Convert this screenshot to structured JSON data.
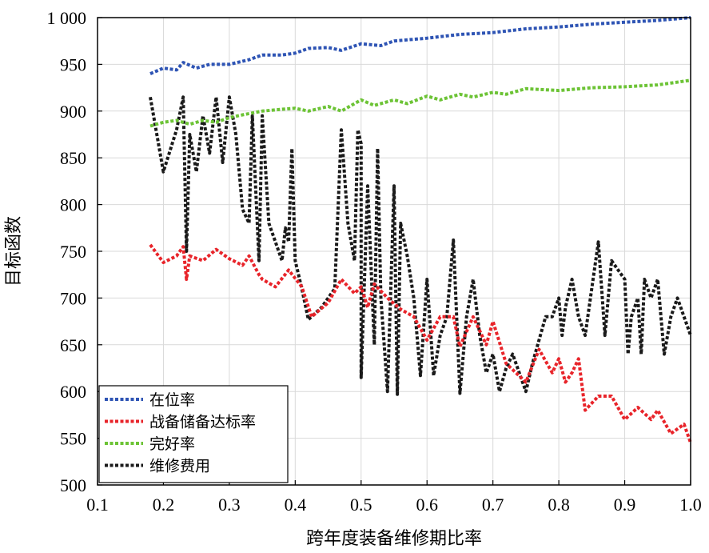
{
  "chart_data": {
    "type": "line",
    "xlabel": "跨年度装备维修期比率",
    "ylabel": "目标函数",
    "xlim": [
      0.1,
      1.0
    ],
    "ylim": [
      500,
      1000
    ],
    "x_ticks": [
      0.1,
      0.2,
      0.3,
      0.4,
      0.5,
      0.6,
      0.7,
      0.8,
      0.9,
      1.0
    ],
    "x_tick_labels": [
      "0.1",
      "0.2",
      "0.3",
      "0.4",
      "0.5",
      "0.6",
      "0.7",
      "0.8",
      "0.9",
      "1.0"
    ],
    "y_ticks": [
      500,
      550,
      600,
      650,
      700,
      750,
      800,
      850,
      900,
      950,
      1000
    ],
    "y_tick_labels": [
      "500",
      "550",
      "600",
      "650",
      "700",
      "750",
      "800",
      "850",
      "900",
      "950",
      "1 000"
    ],
    "grid": true,
    "legend_position": "bottom-left",
    "series": [
      {
        "name": "在位率",
        "color": "#2e54b4",
        "points": [
          [
            0.18,
            940
          ],
          [
            0.2,
            946
          ],
          [
            0.22,
            944
          ],
          [
            0.23,
            952
          ],
          [
            0.25,
            946
          ],
          [
            0.27,
            950
          ],
          [
            0.3,
            950
          ],
          [
            0.33,
            955
          ],
          [
            0.35,
            960
          ],
          [
            0.38,
            960
          ],
          [
            0.4,
            962
          ],
          [
            0.42,
            967
          ],
          [
            0.45,
            968
          ],
          [
            0.47,
            965
          ],
          [
            0.5,
            972
          ],
          [
            0.53,
            970
          ],
          [
            0.55,
            975
          ],
          [
            0.6,
            978
          ],
          [
            0.65,
            982
          ],
          [
            0.7,
            984
          ],
          [
            0.75,
            988
          ],
          [
            0.8,
            990
          ],
          [
            0.85,
            993
          ],
          [
            0.9,
            995
          ],
          [
            0.95,
            997
          ],
          [
            1.0,
            1000
          ]
        ]
      },
      {
        "name": "战备储备达标率",
        "color": "#e8242a",
        "points": [
          [
            0.18,
            757
          ],
          [
            0.2,
            738
          ],
          [
            0.22,
            745
          ],
          [
            0.23,
            755
          ],
          [
            0.235,
            720
          ],
          [
            0.24,
            745
          ],
          [
            0.26,
            740
          ],
          [
            0.28,
            752
          ],
          [
            0.3,
            742
          ],
          [
            0.32,
            735
          ],
          [
            0.33,
            745
          ],
          [
            0.345,
            725
          ],
          [
            0.35,
            720
          ],
          [
            0.37,
            712
          ],
          [
            0.39,
            730
          ],
          [
            0.41,
            712
          ],
          [
            0.425,
            680
          ],
          [
            0.45,
            695
          ],
          [
            0.47,
            720
          ],
          [
            0.49,
            705
          ],
          [
            0.5,
            712
          ],
          [
            0.51,
            690
          ],
          [
            0.52,
            715
          ],
          [
            0.54,
            700
          ],
          [
            0.56,
            688
          ],
          [
            0.58,
            680
          ],
          [
            0.6,
            655
          ],
          [
            0.62,
            680
          ],
          [
            0.64,
            680
          ],
          [
            0.65,
            648
          ],
          [
            0.67,
            680
          ],
          [
            0.69,
            650
          ],
          [
            0.7,
            675
          ],
          [
            0.72,
            630
          ],
          [
            0.75,
            610
          ],
          [
            0.77,
            645
          ],
          [
            0.79,
            620
          ],
          [
            0.8,
            635
          ],
          [
            0.81,
            610
          ],
          [
            0.82,
            620
          ],
          [
            0.83,
            635
          ],
          [
            0.84,
            580
          ],
          [
            0.86,
            595
          ],
          [
            0.88,
            595
          ],
          [
            0.9,
            570
          ],
          [
            0.92,
            583
          ],
          [
            0.94,
            570
          ],
          [
            0.95,
            580
          ],
          [
            0.97,
            555
          ],
          [
            0.99,
            565
          ],
          [
            1.0,
            545
          ]
        ]
      },
      {
        "name": "完好率",
        "color": "#6cc335",
        "points": [
          [
            0.18,
            884
          ],
          [
            0.2,
            888
          ],
          [
            0.22,
            890
          ],
          [
            0.24,
            886
          ],
          [
            0.26,
            890
          ],
          [
            0.28,
            888
          ],
          [
            0.3,
            893
          ],
          [
            0.32,
            896
          ],
          [
            0.35,
            900
          ],
          [
            0.38,
            902
          ],
          [
            0.4,
            903
          ],
          [
            0.42,
            900
          ],
          [
            0.45,
            905
          ],
          [
            0.47,
            900
          ],
          [
            0.5,
            912
          ],
          [
            0.52,
            906
          ],
          [
            0.55,
            912
          ],
          [
            0.57,
            908
          ],
          [
            0.6,
            916
          ],
          [
            0.62,
            912
          ],
          [
            0.65,
            918
          ],
          [
            0.67,
            915
          ],
          [
            0.7,
            920
          ],
          [
            0.72,
            918
          ],
          [
            0.75,
            924
          ],
          [
            0.8,
            922
          ],
          [
            0.85,
            925
          ],
          [
            0.9,
            926
          ],
          [
            0.95,
            928
          ],
          [
            1.0,
            933
          ]
        ]
      },
      {
        "name": "维修费用",
        "color": "#1a1a1a",
        "points": [
          [
            0.18,
            915
          ],
          [
            0.2,
            835
          ],
          [
            0.22,
            880
          ],
          [
            0.23,
            915
          ],
          [
            0.235,
            750
          ],
          [
            0.24,
            875
          ],
          [
            0.25,
            835
          ],
          [
            0.26,
            895
          ],
          [
            0.27,
            855
          ],
          [
            0.28,
            915
          ],
          [
            0.29,
            845
          ],
          [
            0.3,
            915
          ],
          [
            0.31,
            875
          ],
          [
            0.32,
            795
          ],
          [
            0.33,
            780
          ],
          [
            0.335,
            895
          ],
          [
            0.345,
            740
          ],
          [
            0.35,
            895
          ],
          [
            0.36,
            780
          ],
          [
            0.38,
            740
          ],
          [
            0.385,
            775
          ],
          [
            0.39,
            760
          ],
          [
            0.395,
            860
          ],
          [
            0.4,
            740
          ],
          [
            0.41,
            710
          ],
          [
            0.42,
            677
          ],
          [
            0.44,
            690
          ],
          [
            0.46,
            710
          ],
          [
            0.47,
            880
          ],
          [
            0.48,
            780
          ],
          [
            0.49,
            740
          ],
          [
            0.495,
            880
          ],
          [
            0.5,
            865
          ],
          [
            0.5,
            615
          ],
          [
            0.51,
            820
          ],
          [
            0.52,
            650
          ],
          [
            0.525,
            860
          ],
          [
            0.53,
            700
          ],
          [
            0.54,
            600
          ],
          [
            0.55,
            820
          ],
          [
            0.555,
            597
          ],
          [
            0.56,
            780
          ],
          [
            0.57,
            745
          ],
          [
            0.58,
            700
          ],
          [
            0.59,
            617
          ],
          [
            0.6,
            720
          ],
          [
            0.61,
            617
          ],
          [
            0.62,
            660
          ],
          [
            0.63,
            680
          ],
          [
            0.64,
            762
          ],
          [
            0.65,
            598
          ],
          [
            0.66,
            680
          ],
          [
            0.67,
            720
          ],
          [
            0.68,
            660
          ],
          [
            0.69,
            620
          ],
          [
            0.7,
            640
          ],
          [
            0.71,
            600
          ],
          [
            0.72,
            625
          ],
          [
            0.73,
            640
          ],
          [
            0.74,
            620
          ],
          [
            0.75,
            600
          ],
          [
            0.76,
            630
          ],
          [
            0.78,
            680
          ],
          [
            0.79,
            680
          ],
          [
            0.8,
            700
          ],
          [
            0.805,
            660
          ],
          [
            0.81,
            690
          ],
          [
            0.82,
            720
          ],
          [
            0.83,
            680
          ],
          [
            0.84,
            660
          ],
          [
            0.85,
            710
          ],
          [
            0.86,
            760
          ],
          [
            0.87,
            660
          ],
          [
            0.88,
            740
          ],
          [
            0.89,
            730
          ],
          [
            0.9,
            720
          ],
          [
            0.905,
            640
          ],
          [
            0.91,
            680
          ],
          [
            0.92,
            700
          ],
          [
            0.925,
            640
          ],
          [
            0.93,
            720
          ],
          [
            0.94,
            700
          ],
          [
            0.95,
            720
          ],
          [
            0.96,
            640
          ],
          [
            0.97,
            680
          ],
          [
            0.98,
            700
          ],
          [
            1.0,
            660
          ]
        ]
      }
    ]
  }
}
